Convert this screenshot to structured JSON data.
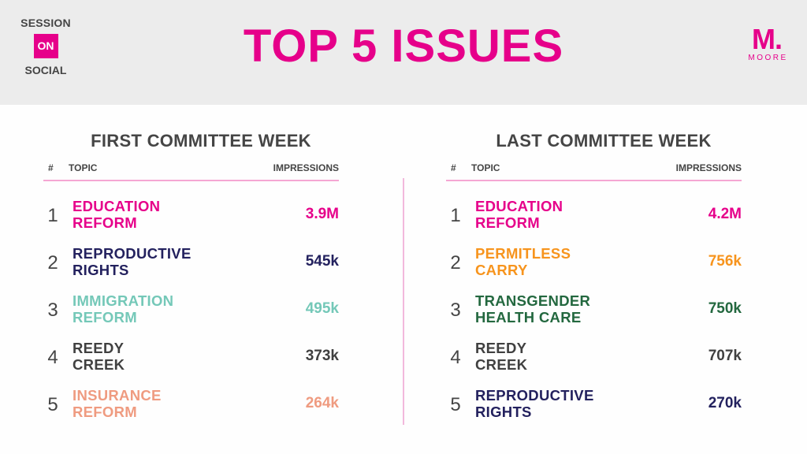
{
  "header": {
    "brand_left": {
      "line1": "SESSION",
      "badge": "ON",
      "line3": "SOCIAL"
    },
    "title": "TOP 5 ISSUES",
    "brand_right": {
      "mark": "M.",
      "name": "MOORE"
    }
  },
  "colors": {
    "accent": "#e6008a",
    "header_bg": "#ececec",
    "rule": "#f5a6d3",
    "text_dark": "#454545"
  },
  "panels": [
    {
      "title": "FIRST COMMITTEE WEEK",
      "columns": {
        "rank": "#",
        "topic": "TOPIC",
        "impressions": "IMPRESSIONS"
      },
      "rows": [
        {
          "rank": "1",
          "topic_line1": "EDUCATION",
          "topic_line2": "REFORM",
          "impressions": "3.9M",
          "color": "#e6008a"
        },
        {
          "rank": "2",
          "topic_line1": "REPRODUCTIVE",
          "topic_line2": "RIGHTS",
          "impressions": "545k",
          "color": "#23215e"
        },
        {
          "rank": "3",
          "topic_line1": "IMMIGRATION",
          "topic_line2": "REFORM",
          "impressions": "495k",
          "color": "#74c8b8"
        },
        {
          "rank": "4",
          "topic_line1": "REEDY",
          "topic_line2": "CREEK",
          "impressions": "373k",
          "color": "#404040"
        },
        {
          "rank": "5",
          "topic_line1": "INSURANCE",
          "topic_line2": "REFORM",
          "impressions": "264k",
          "color": "#ef9b80"
        }
      ]
    },
    {
      "title": "LAST COMMITTEE WEEK",
      "columns": {
        "rank": "#",
        "topic": "TOPIC",
        "impressions": "IMPRESSIONS"
      },
      "rows": [
        {
          "rank": "1",
          "topic_line1": "EDUCATION",
          "topic_line2": "REFORM",
          "impressions": "4.2M",
          "color": "#e6008a"
        },
        {
          "rank": "2",
          "topic_line1": "PERMITLESS",
          "topic_line2": "CARRY",
          "impressions": "756k",
          "color": "#f7941d"
        },
        {
          "rank": "3",
          "topic_line1": "TRANSGENDER",
          "topic_line2": "HEALTH CARE",
          "impressions": "750k",
          "color": "#23683f"
        },
        {
          "rank": "4",
          "topic_line1": "REEDY",
          "topic_line2": "CREEK",
          "impressions": "707k",
          "color": "#404040"
        },
        {
          "rank": "5",
          "topic_line1": "REPRODUCTIVE",
          "topic_line2": "RIGHTS",
          "impressions": "270k",
          "color": "#23215e"
        }
      ]
    }
  ]
}
